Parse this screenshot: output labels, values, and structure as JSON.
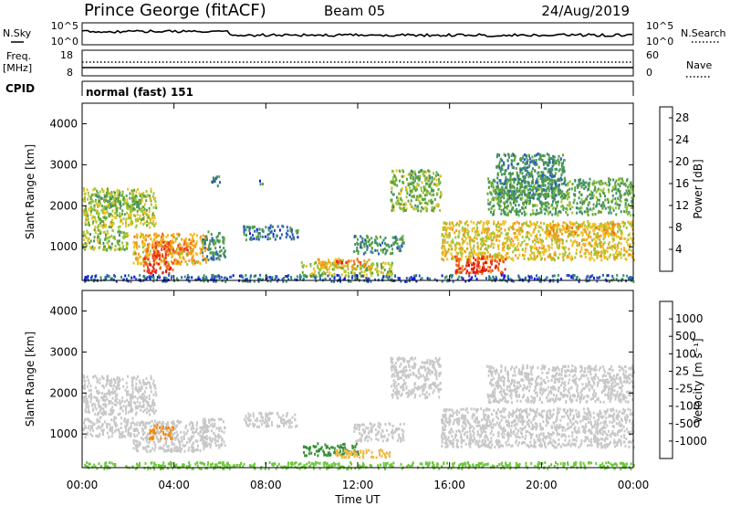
{
  "header": {
    "station": "Prince George (fitACF)",
    "beam": "Beam 05",
    "date": "24/Aug/2019"
  },
  "strip_panels": {
    "nsky_label": "N.Sky",
    "nsearch_label": "N.Search",
    "noise_ticks": [
      "10^5",
      "10^0"
    ],
    "freq_label_1": "Freq.",
    "freq_label_2": "[MHz]",
    "freq_ticks": [
      "18",
      "8"
    ],
    "nave_label": "Nave",
    "nave_ticks": [
      "60",
      "0"
    ],
    "cpid_label": "CPID",
    "cpid_value": "normal (fast) 151"
  },
  "colors": {
    "power_scale": [
      "#1414e6",
      "#2a5fb4",
      "#3f8f6a",
      "#5aa23c",
      "#9cc43a",
      "#f0c020",
      "#f39a1c",
      "#ee6a1a",
      "#e8321a",
      "#e01010"
    ],
    "velocity_scale": [
      "#e00000",
      "#ee4a10",
      "#f08a10",
      "#f2b840",
      "#c8c8c8",
      "#c8c8c8",
      "#6cc83c",
      "#3a8f3a",
      "#2e6fb8",
      "#2030b0"
    ],
    "ground_scatter": "#c8c8c8"
  },
  "chart_data": [
    {
      "type": "heatmap",
      "title": "",
      "xlabel": "Time UT",
      "ylabel": "Slant Range [km]",
      "xlim": [
        0,
        24
      ],
      "ylim": [
        180,
        4500
      ],
      "x_ticks": [
        "00:00",
        "04:00",
        "08:00",
        "12:00",
        "16:00",
        "20:00",
        "00:00"
      ],
      "y_ticks": [
        "1000",
        "2000",
        "3000",
        "4000"
      ],
      "colorbar_label": "Power [dB]",
      "colorbar_ticks": [
        "4",
        "8",
        "12",
        "16",
        "20",
        "24",
        "28"
      ],
      "colorbar_range": [
        0,
        30
      ],
      "regions": [
        {
          "t0": 0.0,
          "t1": 3.2,
          "r0": 1500,
          "r1": 2450,
          "value": 14
        },
        {
          "t0": 0.3,
          "t1": 2.6,
          "r0": 1950,
          "r1": 2350,
          "value": 11
        },
        {
          "t0": 0.0,
          "t1": 2.0,
          "r0": 950,
          "r1": 1450,
          "value": 12
        },
        {
          "t0": 2.2,
          "t1": 5.4,
          "r0": 600,
          "r1": 1350,
          "value": 18
        },
        {
          "t0": 2.6,
          "t1": 4.0,
          "r0": 380,
          "r1": 850,
          "value": 25
        },
        {
          "t0": 3.0,
          "t1": 4.8,
          "r0": 850,
          "r1": 1150,
          "value": 22
        },
        {
          "t0": 5.2,
          "t1": 6.2,
          "r0": 700,
          "r1": 1400,
          "value": 8
        },
        {
          "t0": 5.6,
          "t1": 6.0,
          "r0": 2500,
          "r1": 2750,
          "value": 6
        },
        {
          "t0": 7.7,
          "t1": 7.9,
          "r0": 2550,
          "r1": 2650,
          "value": 6
        },
        {
          "t0": 7.0,
          "t1": 9.4,
          "r0": 1200,
          "r1": 1550,
          "value": 6
        },
        {
          "t0": 9.5,
          "t1": 13.5,
          "r0": 300,
          "r1": 650,
          "value": 14
        },
        {
          "t0": 10.2,
          "t1": 12.6,
          "r0": 500,
          "r1": 750,
          "value": 18
        },
        {
          "t0": 11.0,
          "t1": 12.2,
          "r0": 580,
          "r1": 700,
          "value": 24
        },
        {
          "t0": 11.8,
          "t1": 14.0,
          "r0": 850,
          "r1": 1300,
          "value": 8
        },
        {
          "t0": 13.4,
          "t1": 15.6,
          "r0": 1900,
          "r1": 2900,
          "value": 12
        },
        {
          "t0": 15.6,
          "t1": 24.0,
          "r0": 700,
          "r1": 1650,
          "value": 16
        },
        {
          "t0": 16.2,
          "t1": 18.4,
          "r0": 380,
          "r1": 800,
          "value": 24
        },
        {
          "t0": 16.8,
          "t1": 17.6,
          "r0": 400,
          "r1": 650,
          "value": 28
        },
        {
          "t0": 20.2,
          "t1": 23.2,
          "r0": 1300,
          "r1": 1600,
          "value": 18
        },
        {
          "t0": 17.6,
          "t1": 24.0,
          "r0": 1800,
          "r1": 2700,
          "value": 10
        },
        {
          "t0": 18.0,
          "t1": 21.0,
          "r0": 2200,
          "r1": 3300,
          "value": 8
        },
        {
          "t0": 0.0,
          "t1": 24.0,
          "r0": 180,
          "r1": 340,
          "value": 5
        }
      ]
    },
    {
      "type": "heatmap",
      "title": "",
      "xlabel": "Time UT",
      "ylabel": "Slant Range [km]",
      "xlim": [
        0,
        24
      ],
      "ylim": [
        180,
        4500
      ],
      "x_ticks": [
        "00:00",
        "04:00",
        "08:00",
        "12:00",
        "16:00",
        "20:00",
        "00:00"
      ],
      "y_ticks": [
        "1000",
        "2000",
        "3000",
        "4000"
      ],
      "colorbar_label": "Velocity [m s⁻¹]",
      "colorbar_ticks": [
        "1000",
        "500",
        "100",
        "25",
        "-25",
        "-100",
        "-500",
        "-1000"
      ],
      "regions": [
        {
          "t0": 0.0,
          "t1": 3.2,
          "r0": 1500,
          "r1": 2450,
          "value": 0
        },
        {
          "t0": 0.0,
          "t1": 2.2,
          "r0": 950,
          "r1": 1450,
          "value": 0
        },
        {
          "t0": 2.2,
          "t1": 5.4,
          "r0": 600,
          "r1": 1350,
          "value": 0
        },
        {
          "t0": 2.9,
          "t1": 4.0,
          "r0": 900,
          "r1": 1250,
          "value": -300
        },
        {
          "t0": 5.2,
          "t1": 6.2,
          "r0": 700,
          "r1": 1400,
          "value": 0
        },
        {
          "t0": 7.0,
          "t1": 9.4,
          "r0": 1200,
          "r1": 1550,
          "value": 0
        },
        {
          "t0": 9.6,
          "t1": 12.0,
          "r0": 500,
          "r1": 800,
          "value": 200
        },
        {
          "t0": 11.0,
          "t1": 13.4,
          "r0": 450,
          "r1": 650,
          "value": -60
        },
        {
          "t0": 11.8,
          "t1": 14.0,
          "r0": 850,
          "r1": 1300,
          "value": 0
        },
        {
          "t0": 13.4,
          "t1": 15.6,
          "r0": 1900,
          "r1": 2900,
          "value": 0
        },
        {
          "t0": 15.6,
          "t1": 24.0,
          "r0": 700,
          "r1": 1650,
          "value": 0
        },
        {
          "t0": 17.6,
          "t1": 24.0,
          "r0": 1800,
          "r1": 2700,
          "value": 0
        },
        {
          "t0": 0.0,
          "t1": 24.0,
          "r0": 180,
          "r1": 340,
          "value": 40
        }
      ]
    }
  ]
}
